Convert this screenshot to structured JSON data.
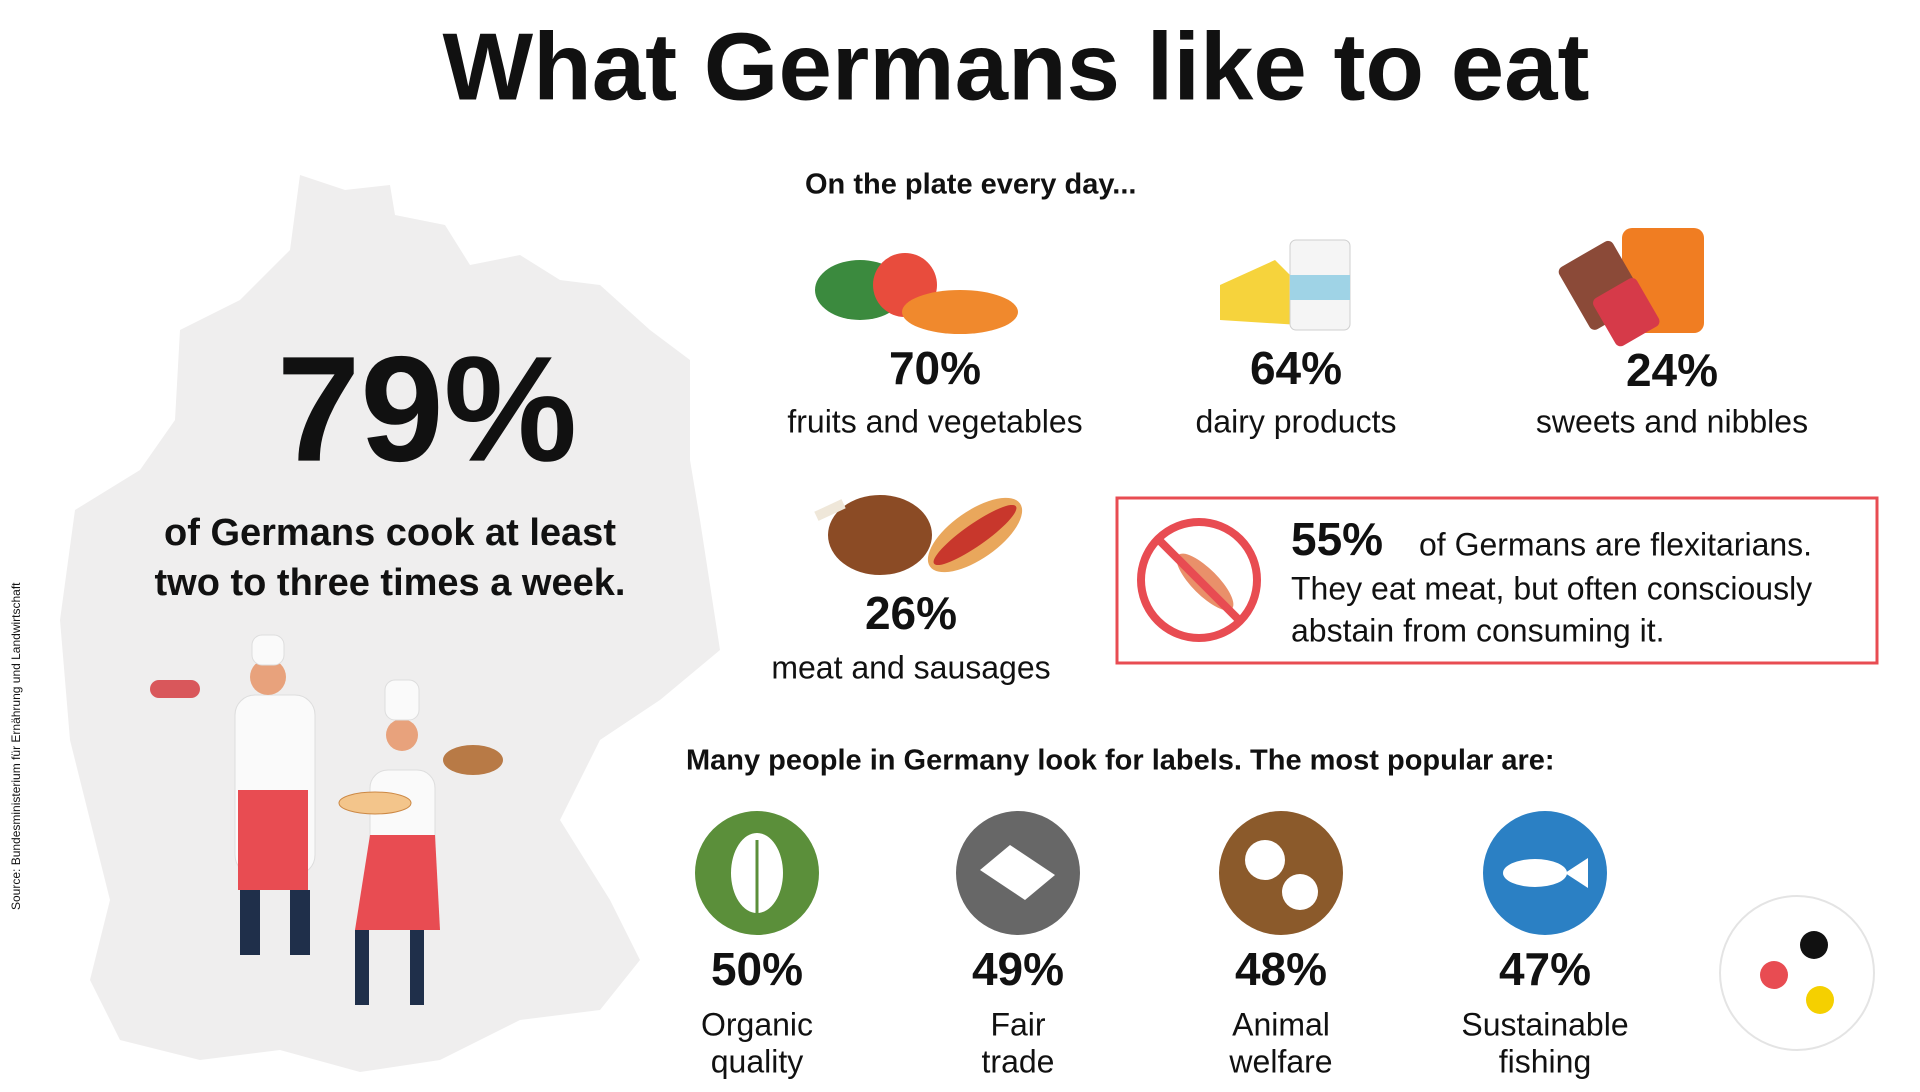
{
  "title": "What Germans like to eat",
  "headline": {
    "value": "79%",
    "text_lines": [
      "of Germans cook at least",
      "two to three times a week."
    ]
  },
  "daily": {
    "heading": "On the plate every day...",
    "items": [
      {
        "value": "70%",
        "label": "fruits and vegetables"
      },
      {
        "value": "64%",
        "label": "dairy products"
      },
      {
        "value": "24%",
        "label": "sweets and nibbles"
      },
      {
        "value": "26%",
        "label": "meat and sausages"
      }
    ]
  },
  "flexitarians": {
    "value": "55%",
    "lines": [
      "of Germans are flexitarians.",
      "They eat meat, but often consciously",
      "abstain from consuming it."
    ]
  },
  "labels": {
    "heading": "Many people in Germany look for labels. The most popular are:",
    "items": [
      {
        "value": "50%",
        "label_lines": [
          "Organic",
          "quality"
        ]
      },
      {
        "value": "49%",
        "label_lines": [
          "Fair",
          "trade"
        ]
      },
      {
        "value": "48%",
        "label_lines": [
          "Animal",
          "welfare"
        ]
      },
      {
        "value": "47%",
        "label_lines": [
          "Sustainable",
          "fishing"
        ]
      }
    ]
  },
  "source": "Source: Bundesministerium für Ernährung und Landwirtschaft"
}
